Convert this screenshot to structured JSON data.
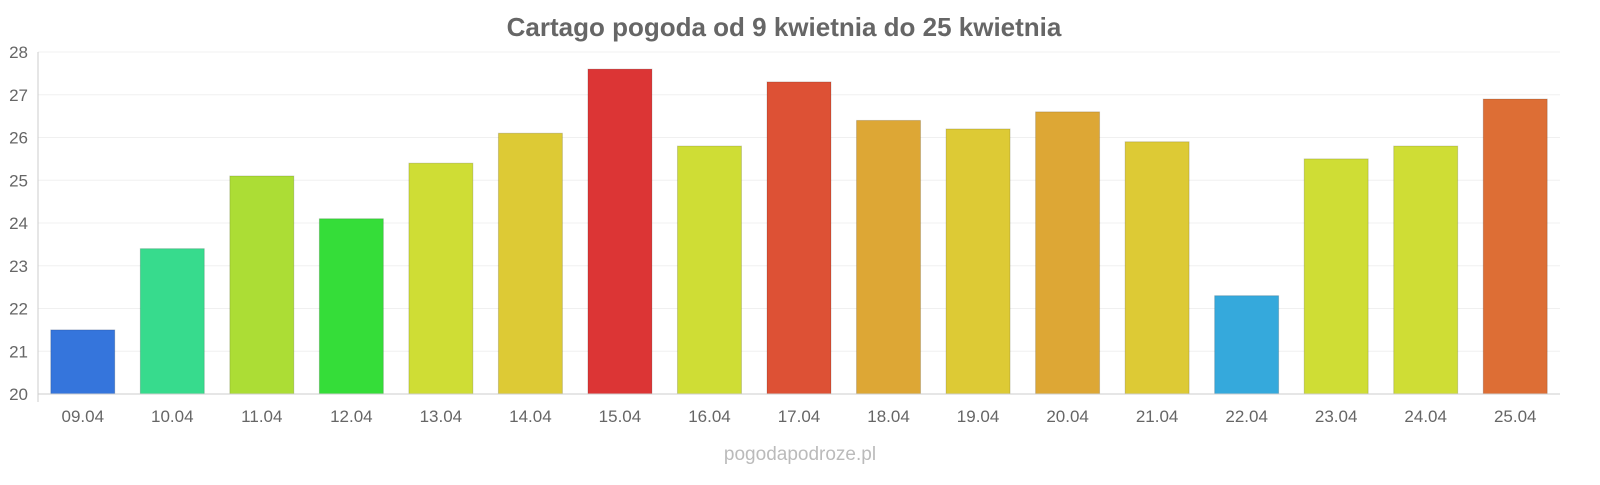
{
  "chart_data": {
    "type": "bar",
    "title": "Cartago pogoda od 9 kwietnia do 25 kwietnia",
    "xlabel": "",
    "ylabel": "",
    "ylim": [
      20,
      28
    ],
    "yticks": [
      20,
      21,
      22,
      23,
      24,
      25,
      26,
      27,
      28
    ],
    "grid": true,
    "categories": [
      "09.04",
      "10.04",
      "11.04",
      "12.04",
      "13.04",
      "14.04",
      "15.04",
      "16.04",
      "17.04",
      "18.04",
      "19.04",
      "20.04",
      "21.04",
      "22.04",
      "23.04",
      "24.04",
      "25.04"
    ],
    "values": [
      21.5,
      23.4,
      25.1,
      24.1,
      25.4,
      26.1,
      27.6,
      25.8,
      27.3,
      26.4,
      26.2,
      26.6,
      25.9,
      22.3,
      25.5,
      25.8,
      26.9
    ],
    "colors": [
      "#3575dc",
      "#37db8d",
      "#acdd35",
      "#35dd39",
      "#cfdd35",
      "#ddca35",
      "#dc3535",
      "#cfdd35",
      "#dd5135",
      "#dda735",
      "#ddca35",
      "#dda735",
      "#ddca35",
      "#35a9dc",
      "#cfdd35",
      "#cfdd35",
      "#dd6e35"
    ]
  },
  "footer": "pogodapodroze.pl"
}
